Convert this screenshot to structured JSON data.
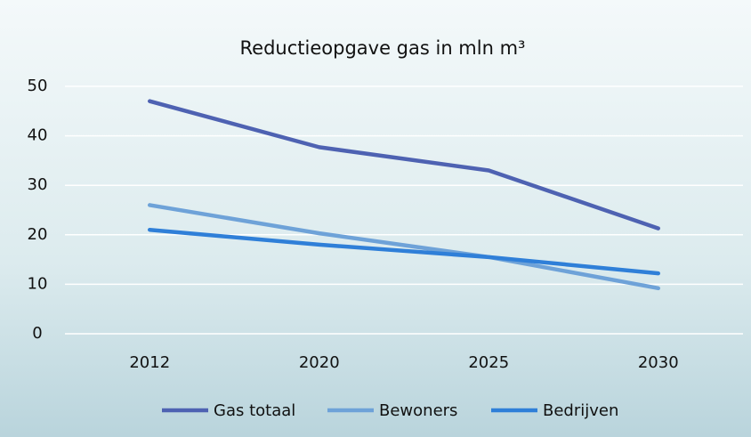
{
  "chart_data": {
    "type": "line",
    "title": "Reductieopgave gas in mln m³",
    "categories": [
      "2012",
      "2020",
      "2025",
      "2030"
    ],
    "series": [
      {
        "name": "Gas totaal",
        "color": "#4e62b2",
        "values": [
          47,
          37.7,
          33,
          21.3
        ]
      },
      {
        "name": "Bewoners",
        "color": "#6ea2d8",
        "values": [
          26,
          20.3,
          15.5,
          9.2
        ]
      },
      {
        "name": "Bedrijven",
        "color": "#2f7fd8",
        "values": [
          21,
          18,
          15.5,
          12.2
        ]
      }
    ],
    "ylim": [
      0,
      50
    ],
    "yticks": [
      0,
      10,
      20,
      30,
      40,
      50
    ],
    "grid": true
  }
}
